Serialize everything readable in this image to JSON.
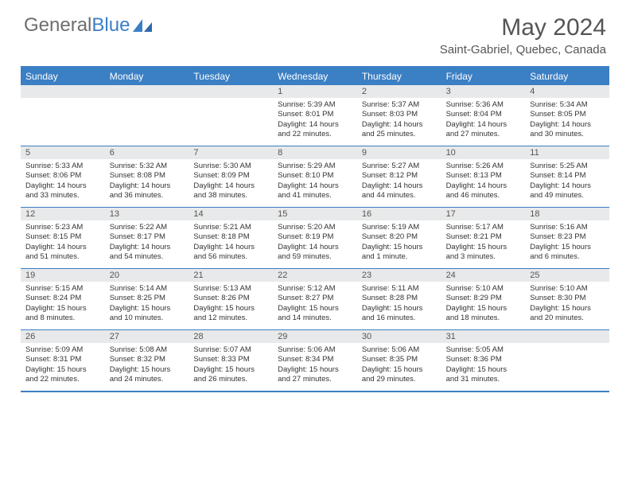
{
  "logo": {
    "text_gray": "General",
    "text_blue": "Blue"
  },
  "title": "May 2024",
  "location": "Saint-Gabriel, Quebec, Canada",
  "colors": {
    "accent": "#3b7fc4",
    "header_bg": "#3b7fc4",
    "daynum_bg": "#e8e9ea",
    "text": "#333333"
  },
  "days_of_week": [
    "Sunday",
    "Monday",
    "Tuesday",
    "Wednesday",
    "Thursday",
    "Friday",
    "Saturday"
  ],
  "weeks": [
    [
      {
        "num": "",
        "lines": [
          "",
          "",
          "",
          ""
        ]
      },
      {
        "num": "",
        "lines": [
          "",
          "",
          "",
          ""
        ]
      },
      {
        "num": "",
        "lines": [
          "",
          "",
          "",
          ""
        ]
      },
      {
        "num": "1",
        "lines": [
          "Sunrise: 5:39 AM",
          "Sunset: 8:01 PM",
          "Daylight: 14 hours",
          "and 22 minutes."
        ]
      },
      {
        "num": "2",
        "lines": [
          "Sunrise: 5:37 AM",
          "Sunset: 8:03 PM",
          "Daylight: 14 hours",
          "and 25 minutes."
        ]
      },
      {
        "num": "3",
        "lines": [
          "Sunrise: 5:36 AM",
          "Sunset: 8:04 PM",
          "Daylight: 14 hours",
          "and 27 minutes."
        ]
      },
      {
        "num": "4",
        "lines": [
          "Sunrise: 5:34 AM",
          "Sunset: 8:05 PM",
          "Daylight: 14 hours",
          "and 30 minutes."
        ]
      }
    ],
    [
      {
        "num": "5",
        "lines": [
          "Sunrise: 5:33 AM",
          "Sunset: 8:06 PM",
          "Daylight: 14 hours",
          "and 33 minutes."
        ]
      },
      {
        "num": "6",
        "lines": [
          "Sunrise: 5:32 AM",
          "Sunset: 8:08 PM",
          "Daylight: 14 hours",
          "and 36 minutes."
        ]
      },
      {
        "num": "7",
        "lines": [
          "Sunrise: 5:30 AM",
          "Sunset: 8:09 PM",
          "Daylight: 14 hours",
          "and 38 minutes."
        ]
      },
      {
        "num": "8",
        "lines": [
          "Sunrise: 5:29 AM",
          "Sunset: 8:10 PM",
          "Daylight: 14 hours",
          "and 41 minutes."
        ]
      },
      {
        "num": "9",
        "lines": [
          "Sunrise: 5:27 AM",
          "Sunset: 8:12 PM",
          "Daylight: 14 hours",
          "and 44 minutes."
        ]
      },
      {
        "num": "10",
        "lines": [
          "Sunrise: 5:26 AM",
          "Sunset: 8:13 PM",
          "Daylight: 14 hours",
          "and 46 minutes."
        ]
      },
      {
        "num": "11",
        "lines": [
          "Sunrise: 5:25 AM",
          "Sunset: 8:14 PM",
          "Daylight: 14 hours",
          "and 49 minutes."
        ]
      }
    ],
    [
      {
        "num": "12",
        "lines": [
          "Sunrise: 5:23 AM",
          "Sunset: 8:15 PM",
          "Daylight: 14 hours",
          "and 51 minutes."
        ]
      },
      {
        "num": "13",
        "lines": [
          "Sunrise: 5:22 AM",
          "Sunset: 8:17 PM",
          "Daylight: 14 hours",
          "and 54 minutes."
        ]
      },
      {
        "num": "14",
        "lines": [
          "Sunrise: 5:21 AM",
          "Sunset: 8:18 PM",
          "Daylight: 14 hours",
          "and 56 minutes."
        ]
      },
      {
        "num": "15",
        "lines": [
          "Sunrise: 5:20 AM",
          "Sunset: 8:19 PM",
          "Daylight: 14 hours",
          "and 59 minutes."
        ]
      },
      {
        "num": "16",
        "lines": [
          "Sunrise: 5:19 AM",
          "Sunset: 8:20 PM",
          "Daylight: 15 hours",
          "and 1 minute."
        ]
      },
      {
        "num": "17",
        "lines": [
          "Sunrise: 5:17 AM",
          "Sunset: 8:21 PM",
          "Daylight: 15 hours",
          "and 3 minutes."
        ]
      },
      {
        "num": "18",
        "lines": [
          "Sunrise: 5:16 AM",
          "Sunset: 8:23 PM",
          "Daylight: 15 hours",
          "and 6 minutes."
        ]
      }
    ],
    [
      {
        "num": "19",
        "lines": [
          "Sunrise: 5:15 AM",
          "Sunset: 8:24 PM",
          "Daylight: 15 hours",
          "and 8 minutes."
        ]
      },
      {
        "num": "20",
        "lines": [
          "Sunrise: 5:14 AM",
          "Sunset: 8:25 PM",
          "Daylight: 15 hours",
          "and 10 minutes."
        ]
      },
      {
        "num": "21",
        "lines": [
          "Sunrise: 5:13 AM",
          "Sunset: 8:26 PM",
          "Daylight: 15 hours",
          "and 12 minutes."
        ]
      },
      {
        "num": "22",
        "lines": [
          "Sunrise: 5:12 AM",
          "Sunset: 8:27 PM",
          "Daylight: 15 hours",
          "and 14 minutes."
        ]
      },
      {
        "num": "23",
        "lines": [
          "Sunrise: 5:11 AM",
          "Sunset: 8:28 PM",
          "Daylight: 15 hours",
          "and 16 minutes."
        ]
      },
      {
        "num": "24",
        "lines": [
          "Sunrise: 5:10 AM",
          "Sunset: 8:29 PM",
          "Daylight: 15 hours",
          "and 18 minutes."
        ]
      },
      {
        "num": "25",
        "lines": [
          "Sunrise: 5:10 AM",
          "Sunset: 8:30 PM",
          "Daylight: 15 hours",
          "and 20 minutes."
        ]
      }
    ],
    [
      {
        "num": "26",
        "lines": [
          "Sunrise: 5:09 AM",
          "Sunset: 8:31 PM",
          "Daylight: 15 hours",
          "and 22 minutes."
        ]
      },
      {
        "num": "27",
        "lines": [
          "Sunrise: 5:08 AM",
          "Sunset: 8:32 PM",
          "Daylight: 15 hours",
          "and 24 minutes."
        ]
      },
      {
        "num": "28",
        "lines": [
          "Sunrise: 5:07 AM",
          "Sunset: 8:33 PM",
          "Daylight: 15 hours",
          "and 26 minutes."
        ]
      },
      {
        "num": "29",
        "lines": [
          "Sunrise: 5:06 AM",
          "Sunset: 8:34 PM",
          "Daylight: 15 hours",
          "and 27 minutes."
        ]
      },
      {
        "num": "30",
        "lines": [
          "Sunrise: 5:06 AM",
          "Sunset: 8:35 PM",
          "Daylight: 15 hours",
          "and 29 minutes."
        ]
      },
      {
        "num": "31",
        "lines": [
          "Sunrise: 5:05 AM",
          "Sunset: 8:36 PM",
          "Daylight: 15 hours",
          "and 31 minutes."
        ]
      },
      {
        "num": "",
        "lines": [
          "",
          "",
          "",
          ""
        ]
      }
    ]
  ]
}
